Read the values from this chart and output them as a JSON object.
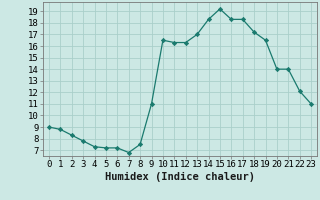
{
  "x": [
    0,
    1,
    2,
    3,
    4,
    5,
    6,
    7,
    8,
    9,
    10,
    11,
    12,
    13,
    14,
    15,
    16,
    17,
    18,
    19,
    20,
    21,
    22,
    23
  ],
  "y": [
    9,
    8.8,
    8.3,
    7.8,
    7.3,
    7.2,
    7.2,
    6.8,
    7.5,
    11,
    16.5,
    16.3,
    16.3,
    17,
    18.3,
    19.2,
    18.3,
    18.3,
    17.2,
    16.5,
    14,
    14,
    12.1,
    11
  ],
  "line_color": "#1a7a6e",
  "marker_color": "#1a7a6e",
  "bg_color": "#cce8e4",
  "grid_color": "#aacfca",
  "xlabel": "Humidex (Indice chaleur)",
  "xlim": [
    -0.5,
    23.5
  ],
  "ylim": [
    6.5,
    19.8
  ],
  "yticks": [
    7,
    8,
    9,
    10,
    11,
    12,
    13,
    14,
    15,
    16,
    17,
    18,
    19
  ],
  "xticks": [
    0,
    1,
    2,
    3,
    4,
    5,
    6,
    7,
    8,
    9,
    10,
    11,
    12,
    13,
    14,
    15,
    16,
    17,
    18,
    19,
    20,
    21,
    22,
    23
  ],
  "xlabel_fontsize": 7.5,
  "tick_fontsize": 6.5
}
